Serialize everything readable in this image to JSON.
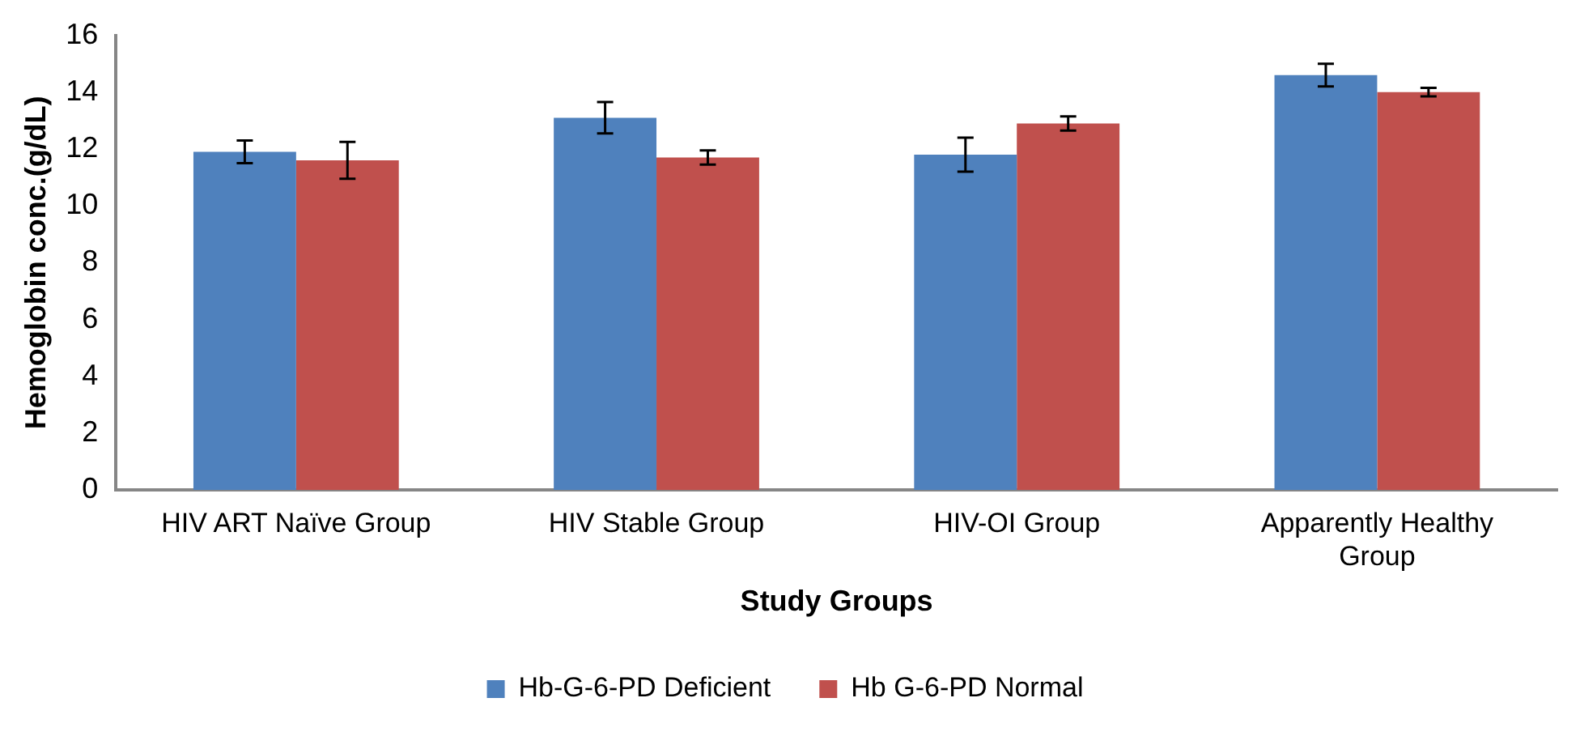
{
  "chart_data": {
    "type": "bar",
    "xlabel": "Study Groups",
    "ylabel": "Hemoglobin conc.(g/dL)",
    "categories": [
      "HIV ART Naïve Group",
      "HIV Stable Group",
      "HIV-OI Group",
      "Apparently Healthy Group"
    ],
    "series": [
      {
        "name": "Hb-G-6-PD Deficient",
        "color": "#4f81bd",
        "values": [
          11.9,
          13.1,
          11.8,
          14.6
        ],
        "errors": [
          0.4,
          0.55,
          0.6,
          0.4
        ]
      },
      {
        "name": "Hb G-6-PD Normal",
        "color": "#c0504d",
        "values": [
          11.6,
          11.7,
          12.9,
          14.0
        ],
        "errors": [
          0.65,
          0.25,
          0.25,
          0.15
        ]
      }
    ],
    "ylim": [
      0,
      16
    ],
    "yticks": [
      0,
      2,
      4,
      6,
      8,
      10,
      12,
      14,
      16
    ],
    "grid": false,
    "legend": "bottom"
  }
}
